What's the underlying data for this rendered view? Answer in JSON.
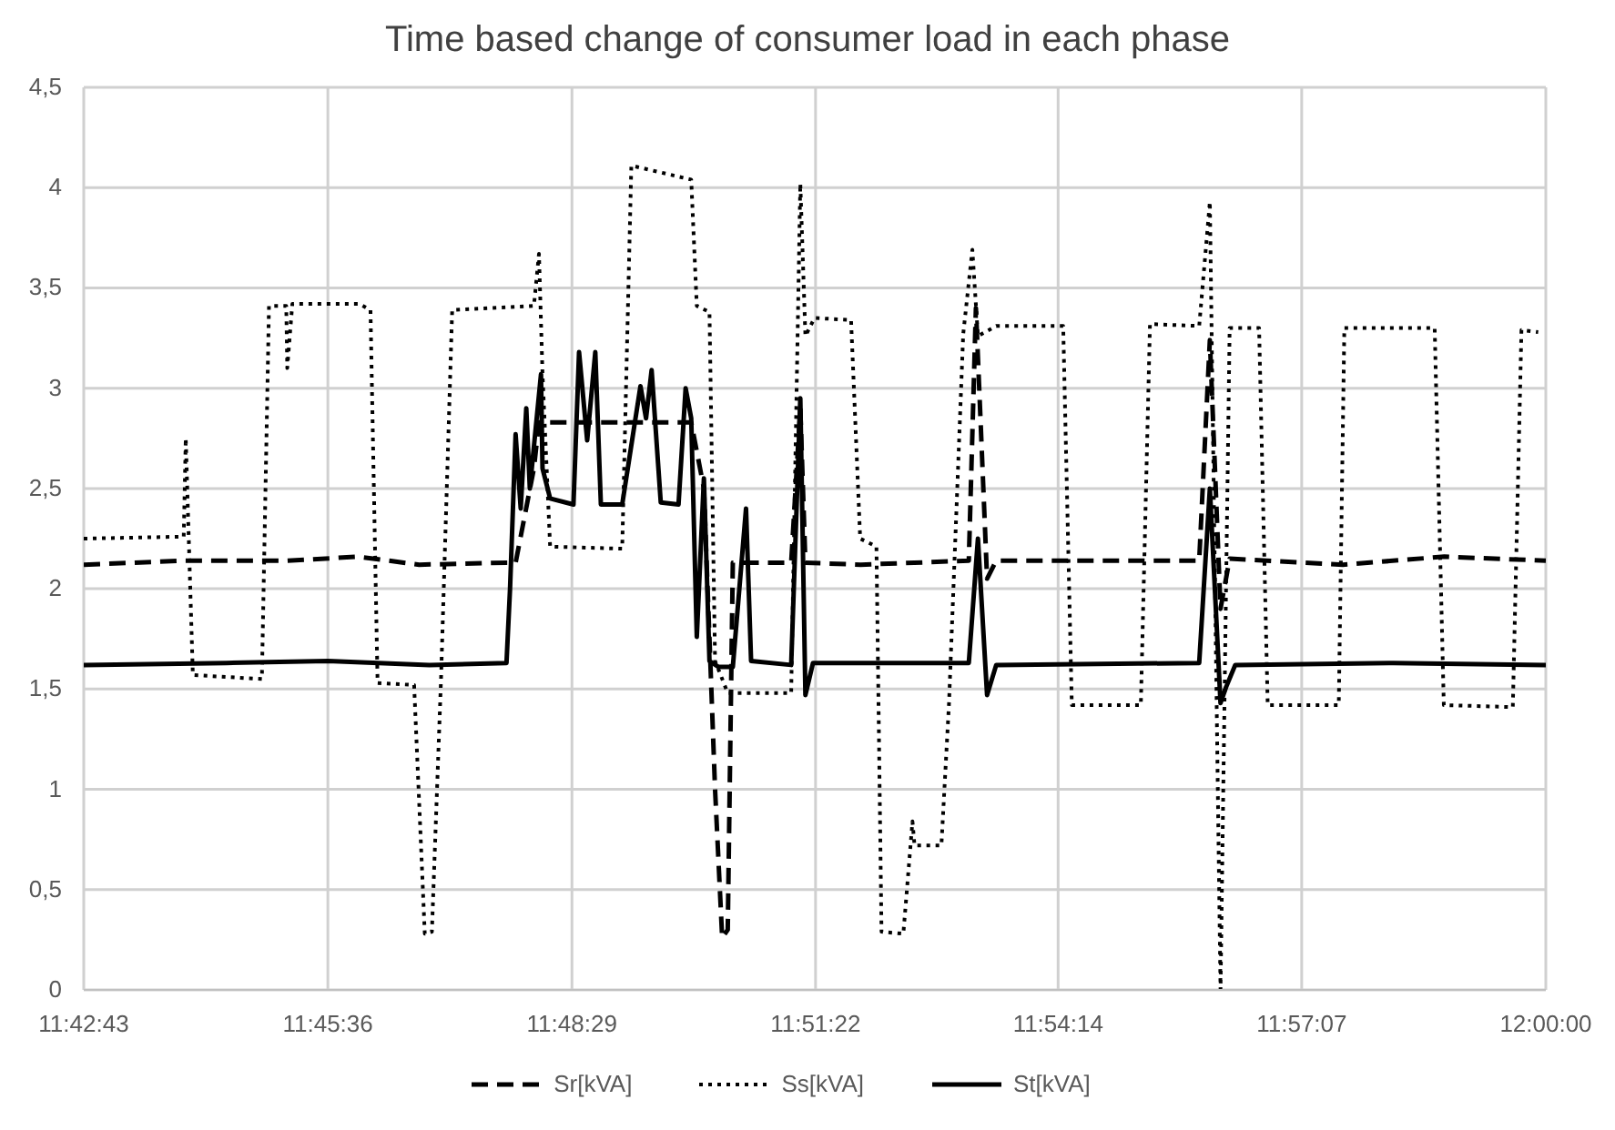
{
  "chart_data": {
    "type": "line",
    "title": "Time based change of consumer load in each phase",
    "xlim": [
      11.7119,
      12
    ],
    "xticks": [
      {
        "value": 11.7119,
        "label": "11:42:43"
      },
      {
        "value": 11.76,
        "label": "11:45:36"
      },
      {
        "value": 11.8081,
        "label": "11:48:29"
      },
      {
        "value": 11.8561,
        "label": "11:51:22"
      },
      {
        "value": 11.9039,
        "label": "11:54:14"
      },
      {
        "value": 11.9519,
        "label": "11:57:07"
      },
      {
        "value": 12,
        "label": "12:00:00"
      }
    ],
    "ylim": [
      0,
      4.5
    ],
    "yticks": [
      0,
      {
        "value": 0.5,
        "label": "0,5"
      },
      1,
      {
        "value": 1.5,
        "label": "1,5"
      },
      2,
      {
        "value": 2.5,
        "label": "2,5"
      },
      3,
      {
        "value": 3.5,
        "label": "3,5"
      },
      4,
      {
        "value": 4.5,
        "label": "4,5"
      }
    ],
    "grid": true,
    "legend": "bottom",
    "marker": "none",
    "series": [
      {
        "name": "Sr[kVA]",
        "color": "#000000",
        "line_style": "dashed",
        "x": [
          11.7119,
          11.7316,
          11.752,
          11.766,
          11.778,
          11.7952,
          11.797,
          11.8006,
          11.8016,
          11.8316,
          11.8341,
          11.8363,
          11.8377,
          11.8388,
          11.8398,
          11.8513,
          11.8531,
          11.8541,
          11.865,
          11.8863,
          11.8877,
          11.8899,
          11.8917,
          11.91,
          11.9317,
          11.9338,
          11.9359,
          11.9377,
          11.96,
          11.98,
          12
        ],
        "values": [
          2.12,
          2.14,
          2.14,
          2.16,
          2.12,
          2.13,
          2.13,
          2.6,
          2.83,
          2.83,
          2.5,
          1.0,
          0.26,
          0.3,
          2.13,
          2.13,
          2.9,
          2.13,
          2.12,
          2.14,
          3.4,
          2.05,
          2.14,
          2.14,
          2.14,
          3.24,
          1.9,
          2.15,
          2.12,
          2.16,
          2.14
        ]
      },
      {
        "name": "Ss[kVA]",
        "color": "#000000",
        "line_style": "dotted",
        "x": [
          11.7119,
          11.7316,
          11.732,
          11.7334,
          11.747,
          11.7484,
          11.7518,
          11.752,
          11.753,
          11.7662,
          11.7684,
          11.7698,
          11.777,
          11.7791,
          11.7805,
          11.7823,
          11.7845,
          11.8006,
          11.8016,
          11.8023,
          11.8038,
          11.818,
          11.8198,
          11.8316,
          11.8327,
          11.8352,
          11.8363,
          11.8388,
          11.8513,
          11.8531,
          11.8541,
          11.8559,
          11.8631,
          11.8649,
          11.8681,
          11.8691,
          11.8734,
          11.8752,
          11.8756,
          11.8809,
          11.8824,
          11.8852,
          11.887,
          11.8881,
          11.8917,
          11.9049,
          11.9066,
          11.9202,
          11.922,
          11.9317,
          11.9338,
          11.9359,
          11.9377,
          11.9435,
          11.9452,
          11.9592,
          11.9603,
          11.9781,
          11.9799,
          11.9935,
          11.9952,
          11.9985
        ],
        "values": [
          2.25,
          2.26,
          2.75,
          1.57,
          1.55,
          3.41,
          3.41,
          3.1,
          3.42,
          3.42,
          3.39,
          1.53,
          1.52,
          0.28,
          0.29,
          1.55,
          3.39,
          3.41,
          3.67,
          3.07,
          2.21,
          2.2,
          4.11,
          4.04,
          3.41,
          3.38,
          1.64,
          1.48,
          1.48,
          4.02,
          3.26,
          3.35,
          3.34,
          2.25,
          2.21,
          0.29,
          0.28,
          0.84,
          0.72,
          0.72,
          1.43,
          3.27,
          3.69,
          3.26,
          3.31,
          3.31,
          1.42,
          1.42,
          3.32,
          3.31,
          3.93,
          0,
          3.3,
          3.3,
          1.42,
          1.42,
          3.3,
          3.3,
          1.42,
          1.41,
          3.29,
          3.28
        ]
      },
      {
        "name": "St[kVA]",
        "color": "#000000",
        "line_style": "solid",
        "x": [
          11.7119,
          11.74,
          11.76,
          11.78,
          11.7952,
          11.7959,
          11.797,
          11.798,
          11.7991,
          11.7998,
          11.802,
          11.8023,
          11.8038,
          11.8084,
          11.8095,
          11.8111,
          11.8127,
          11.8138,
          11.818,
          11.8216,
          11.8227,
          11.8238,
          11.8256,
          11.8291,
          11.8305,
          11.8316,
          11.8327,
          11.8341,
          11.8352,
          11.837,
          11.8398,
          11.8424,
          11.8434,
          11.8513,
          11.8531,
          11.8541,
          11.8556,
          11.8863,
          11.8881,
          11.8899,
          11.8917,
          11.9317,
          11.9338,
          11.9359,
          11.937,
          11.9388,
          11.97,
          12
        ],
        "values": [
          1.62,
          1.63,
          1.64,
          1.62,
          1.63,
          2.0,
          2.77,
          2.4,
          2.9,
          2.5,
          3.07,
          2.6,
          2.45,
          2.42,
          3.18,
          2.74,
          3.18,
          2.42,
          2.42,
          3.01,
          2.85,
          3.09,
          2.43,
          2.42,
          3.0,
          2.85,
          1.76,
          2.55,
          1.64,
          1.61,
          1.61,
          2.4,
          1.64,
          1.62,
          2.95,
          1.47,
          1.63,
          1.63,
          2.25,
          1.47,
          1.62,
          1.63,
          2.5,
          1.43,
          1.51,
          1.62,
          1.63,
          1.62
        ]
      }
    ]
  }
}
